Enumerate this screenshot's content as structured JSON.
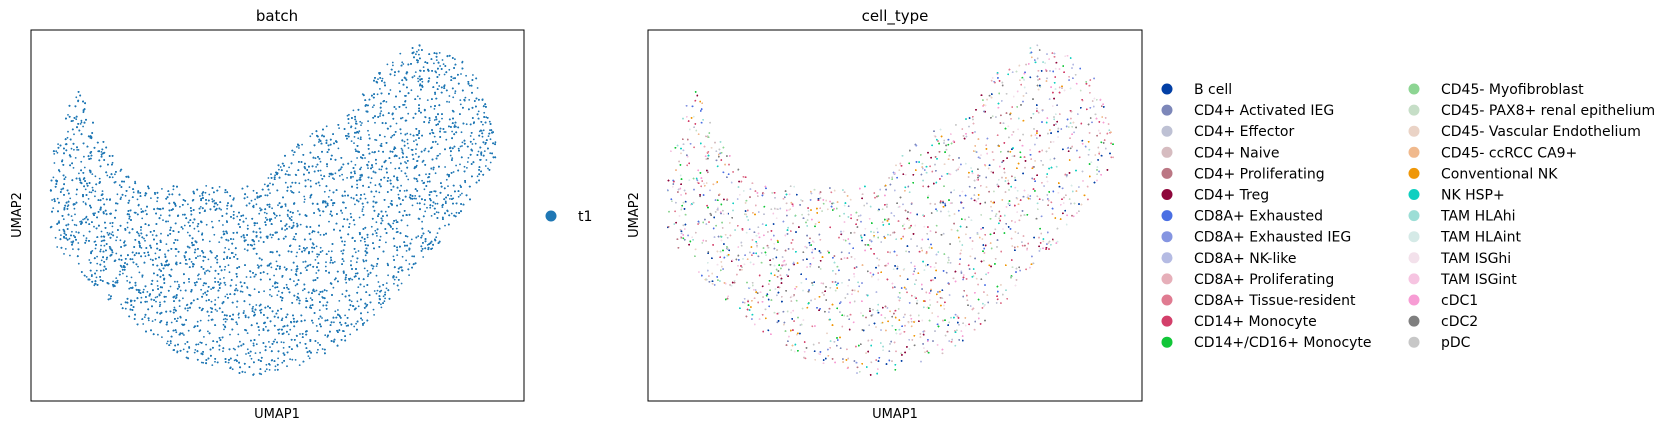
{
  "chart_data": [
    {
      "type": "scatter",
      "title": "batch",
      "xlabel": "UMAP1",
      "ylabel": "UMAP2",
      "grid": false,
      "legend_placement": "right",
      "series": [
        {
          "name": "t1",
          "color": "#1f77b4"
        }
      ]
    },
    {
      "type": "scatter",
      "title": "cell_type",
      "xlabel": "UMAP1",
      "ylabel": "UMAP2",
      "grid": false,
      "legend_placement": "right",
      "legend_columns": 2,
      "series": [
        {
          "name": "B cell",
          "color": "#023fa5"
        },
        {
          "name": "CD4+ Activated IEG",
          "color": "#7d87b9"
        },
        {
          "name": "CD4+ Effector",
          "color": "#bec1d4"
        },
        {
          "name": "CD4+ Naive",
          "color": "#d6bcc0"
        },
        {
          "name": "CD4+ Proliferating",
          "color": "#bb7784"
        },
        {
          "name": "CD4+ Treg",
          "color": "#8e063b"
        },
        {
          "name": "CD8A+ Exhausted",
          "color": "#4a6fe3"
        },
        {
          "name": "CD8A+ Exhausted IEG",
          "color": "#8595e1"
        },
        {
          "name": "CD8A+ NK-like",
          "color": "#b5bbe3"
        },
        {
          "name": "CD8A+ Proliferating",
          "color": "#e6afb9"
        },
        {
          "name": "CD8A+ Tissue-resident",
          "color": "#e07b91"
        },
        {
          "name": "CD14+ Monocyte",
          "color": "#d33f6a"
        },
        {
          "name": "CD14+/CD16+ Monocyte",
          "color": "#11c638"
        },
        {
          "name": "CD45- Myofibroblast",
          "color": "#8dd593"
        },
        {
          "name": "CD45- PAX8+ renal epithelium",
          "color": "#c6dec7"
        },
        {
          "name": "CD45- Vascular Endothelium",
          "color": "#ead3c6"
        },
        {
          "name": "CD45- ccRCC CA9+",
          "color": "#f0b98d"
        },
        {
          "name": "Conventional NK",
          "color": "#ef9708"
        },
        {
          "name": "NK HSP+",
          "color": "#0fcfc0"
        },
        {
          "name": "TAM HLAhi",
          "color": "#9cded6"
        },
        {
          "name": "TAM HLAint",
          "color": "#d5eae7"
        },
        {
          "name": "TAM ISGhi",
          "color": "#f3e1eb"
        },
        {
          "name": "TAM ISGint",
          "color": "#f6c4e1"
        },
        {
          "name": "cDC1",
          "color": "#f79cd4"
        },
        {
          "name": "cDC2",
          "color": "#7f7f7f"
        },
        {
          "name": "pDC",
          "color": "#c7c7c7"
        }
      ]
    }
  ]
}
